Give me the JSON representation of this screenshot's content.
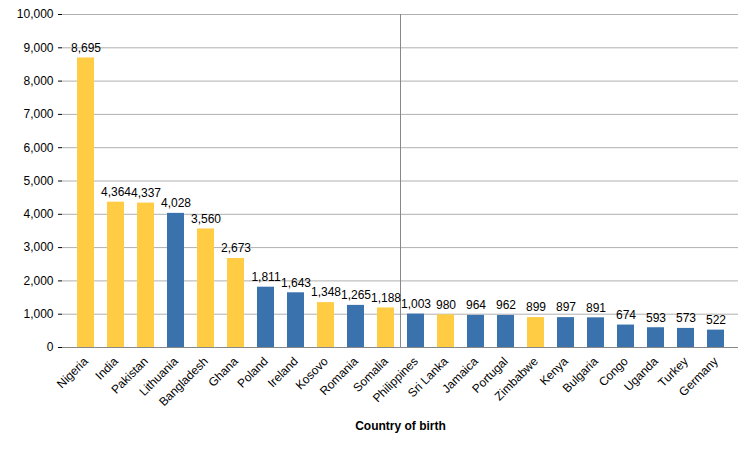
{
  "chart_data": {
    "type": "bar",
    "xlabel": "Country of birth",
    "categories": [
      "Nigeria",
      "India",
      "Pakistan",
      "Lithuania",
      "Bangladesh",
      "Ghana",
      "Poland",
      "Ireland",
      "Kosovo",
      "Romania",
      "Somalia",
      "Philippines",
      "Sri Lanka",
      "Jamaica",
      "Portugal",
      "Zimbabwe",
      "Kenya",
      "Bulgaria",
      "Congo",
      "Uganda",
      "Turkey",
      "Germany"
    ],
    "values": [
      8695,
      4364,
      4337,
      4028,
      3560,
      2673,
      1811,
      1643,
      1348,
      1265,
      1188,
      1003,
      980,
      964,
      962,
      899,
      897,
      891,
      674,
      593,
      573,
      522
    ],
    "value_labels": [
      "8,695",
      "4,364",
      "4,337",
      "4,028",
      "3,560",
      "2,673",
      "1,811",
      "1,643",
      "1,348",
      "1,265",
      "1,188",
      "1,003",
      "980",
      "964",
      "962",
      "899",
      "897",
      "891",
      "674",
      "593",
      "573",
      "522"
    ],
    "colors": [
      "#ffcc44",
      "#ffcc44",
      "#ffcc44",
      "#3a72ad",
      "#ffcc44",
      "#ffcc44",
      "#3a72ad",
      "#3a72ad",
      "#ffcc44",
      "#3a72ad",
      "#ffcc44",
      "#3a72ad",
      "#ffcc44",
      "#3a72ad",
      "#3a72ad",
      "#ffcc44",
      "#3a72ad",
      "#3a72ad",
      "#3a72ad",
      "#3a72ad",
      "#3a72ad",
      "#3a72ad"
    ],
    "ylim": [
      0,
      10000
    ],
    "yticks": [
      0,
      {
        "value": 1000,
        "label": "1,000"
      },
      {
        "value": 2000,
        "label": "2,000"
      },
      {
        "value": 3000,
        "label": "3,000"
      },
      {
        "value": 4000,
        "label": "4,000"
      },
      {
        "value": 5000,
        "label": "5,000"
      },
      {
        "value": 6000,
        "label": "6,000"
      },
      {
        "value": 7000,
        "label": "7,000"
      },
      {
        "value": 8000,
        "label": "8,000"
      },
      {
        "value": 9000,
        "label": "9,000"
      },
      {
        "value": 10000,
        "label": "10,000"
      }
    ],
    "grid": true,
    "data_labels": true
  }
}
